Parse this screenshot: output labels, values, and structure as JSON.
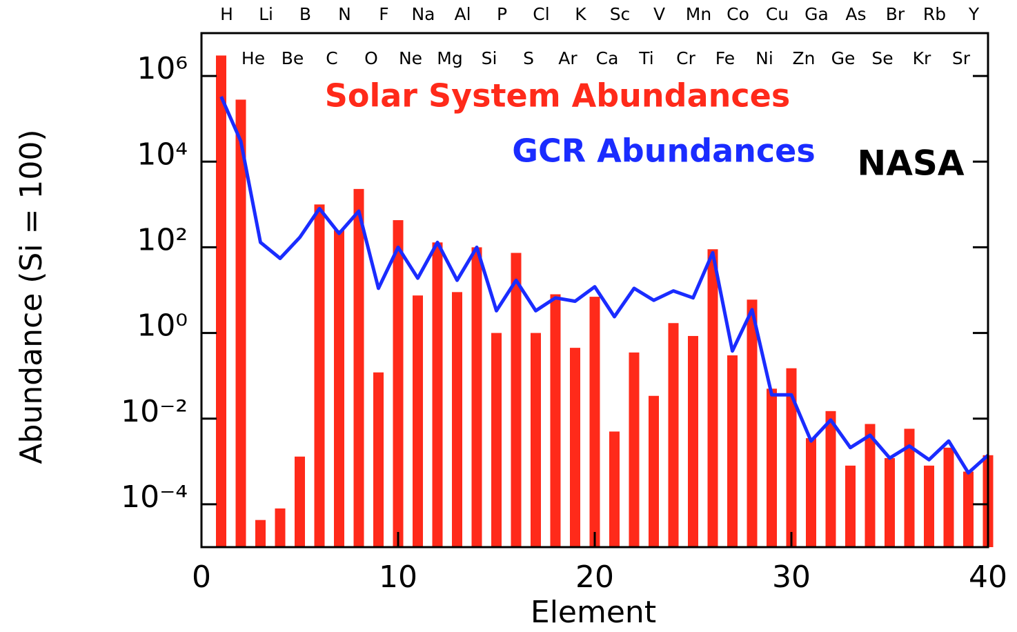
{
  "chart_data": {
    "type": "bar",
    "xlabel": "Element",
    "ylabel": "Abundance (Si = 100)",
    "annotations": [
      "NASA"
    ],
    "x": [
      1,
      2,
      3,
      4,
      5,
      6,
      7,
      8,
      9,
      10,
      11,
      12,
      13,
      14,
      15,
      16,
      17,
      18,
      19,
      20,
      21,
      22,
      23,
      24,
      25,
      26,
      27,
      28,
      29,
      30,
      31,
      32,
      33,
      34,
      35,
      36,
      37,
      38,
      39,
      40
    ],
    "categories": [
      "H",
      "He",
      "Li",
      "Be",
      "B",
      "C",
      "N",
      "O",
      "F",
      "Ne",
      "Na",
      "Mg",
      "Al",
      "Si",
      "P",
      "S",
      "Cl",
      "Ar",
      "K",
      "Ca",
      "Sc",
      "Ti",
      "V",
      "Cr",
      "Mn",
      "Fe",
      "Co",
      "Ni",
      "Cu",
      "Zn",
      "Ga",
      "Ge",
      "As",
      "Se",
      "Br",
      "Kr",
      "Rb",
      "Sr",
      "Y",
      null
    ],
    "series": [
      {
        "name": "Solar System Abundances",
        "type": "bar",
        "color": "#ff2a1a",
        "values": [
          3000000,
          280000,
          4.3e-05,
          8e-05,
          0.0013,
          1000,
          250,
          2300,
          0.12,
          430,
          7.5,
          130,
          9,
          100,
          1,
          74,
          1,
          8,
          0.45,
          7,
          0.005,
          0.35,
          0.034,
          1.7,
          0.85,
          90,
          0.3,
          6,
          0.05,
          0.15,
          0.0035,
          0.015,
          0.0008,
          0.0075,
          0.0012,
          0.0058,
          0.0008,
          0.0021,
          0.00058,
          0.0014
        ]
      },
      {
        "name": "GCR Abundances",
        "type": "line",
        "color": "#1a2cff",
        "values": [
          330000,
          30000,
          130,
          55,
          170,
          800,
          210,
          700,
          11,
          100,
          19,
          130,
          17,
          100,
          3.3,
          17,
          3.3,
          6.6,
          5.5,
          12,
          2.4,
          11,
          5.8,
          9.6,
          6.6,
          75,
          0.38,
          3.5,
          0.036,
          0.036,
          0.003,
          0.0093,
          0.0021,
          0.0041,
          0.0012,
          0.0023,
          0.0011,
          0.003,
          0.00054,
          0.0014
        ]
      }
    ],
    "xlim": [
      0,
      40
    ],
    "xticks": [
      0,
      10,
      20,
      30,
      40
    ],
    "ylim": [
      1e-05,
      10000000
    ],
    "log_y": true,
    "yticks": [
      {
        "value": 0.0001,
        "label": "10⁻⁴"
      },
      {
        "value": 0.01,
        "label": "10⁻²"
      },
      {
        "value": 1,
        "label": "10⁰"
      },
      {
        "value": 100,
        "label": "10²"
      },
      {
        "value": 10000,
        "label": "10⁴"
      },
      {
        "value": 1000000,
        "label": "10⁶"
      }
    ]
  }
}
